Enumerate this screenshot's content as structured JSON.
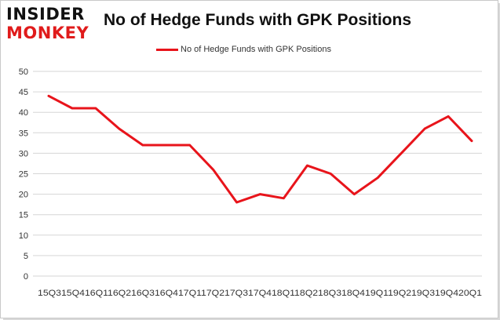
{
  "brand": {
    "line1": "INSIDER",
    "line2": "MONKEY",
    "accent": "#e01b1b"
  },
  "chart_data": {
    "type": "line",
    "title": "No of Hedge Funds with GPK Positions",
    "xlabel": "",
    "ylabel": "",
    "categories": [
      "Q3 2015",
      "Q4 2015",
      "Q1 2016",
      "Q2 2016",
      "Q3 2016",
      "Q4 2016",
      "Q1 2017",
      "Q2 2017",
      "Q3 2017",
      "Q4 2017",
      "Q1 2018",
      "Q2 2018",
      "Q3 2018",
      "Q4 2018",
      "Q1 2019",
      "Q2 2019",
      "Q3 2019",
      "Q4 2019",
      "Q1 2020"
    ],
    "x_axis_text": "15Q315Q416Q116Q216Q316Q417Q117Q217Q317Q418Q118Q218Q318Q419Q119Q219Q319Q420Q1",
    "series": [
      {
        "name": "No of Hedge Funds with GPK Positions",
        "color": "#e8141b",
        "values": [
          44,
          41,
          41,
          36,
          32,
          32,
          32,
          26,
          18,
          20,
          19,
          27,
          25,
          20,
          24,
          30,
          36,
          39,
          33
        ]
      }
    ],
    "ylim": [
      0,
      50
    ],
    "yticks": [
      0,
      5,
      10,
      15,
      20,
      25,
      30,
      35,
      40,
      45,
      50
    ],
    "grid": true,
    "legend_position": "top-center"
  }
}
